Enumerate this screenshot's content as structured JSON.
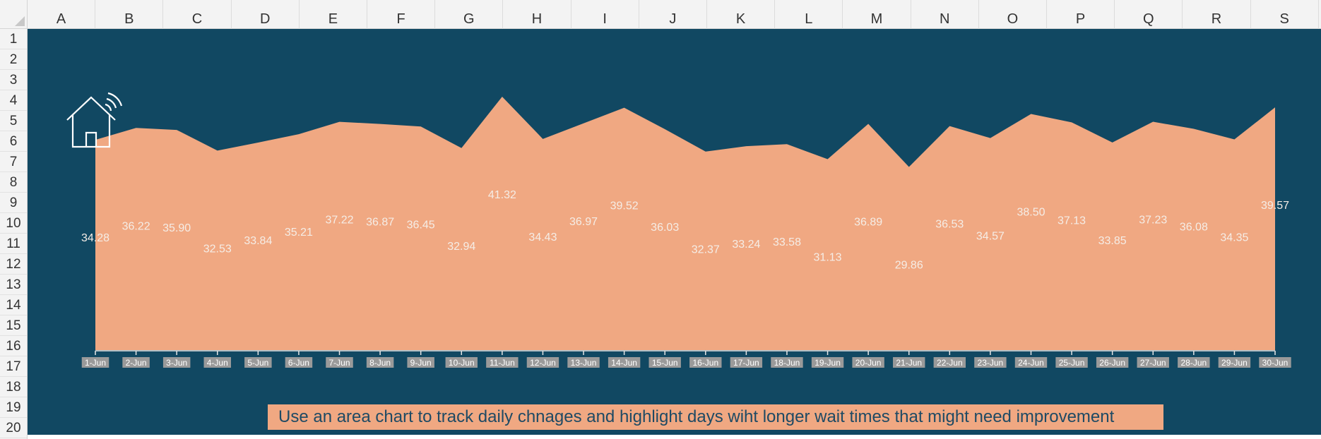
{
  "spreadsheet": {
    "columns": [
      "A",
      "B",
      "C",
      "D",
      "E",
      "F",
      "G",
      "H",
      "I",
      "J",
      "K",
      "L",
      "M",
      "N",
      "O",
      "P",
      "Q",
      "R",
      "S"
    ],
    "rows": [
      "1",
      "2",
      "3",
      "4",
      "5",
      "6",
      "7",
      "8",
      "9",
      "10",
      "11",
      "12",
      "13",
      "14",
      "15",
      "16",
      "17",
      "18",
      "19",
      "20"
    ]
  },
  "colors": {
    "background": "#114862",
    "area": "#f0a882",
    "label": "#f5ede6",
    "tick_label_bg": "#9a9a9a",
    "header_bg": "#f3f3f3"
  },
  "icon": {
    "name": "smart-home-icon"
  },
  "note": {
    "text": "Use an area chart to track daily chnages and highlight days wiht longer wait times that might need improvement"
  },
  "chart_data": {
    "type": "area",
    "categories": [
      "1-Jun",
      "2-Jun",
      "3-Jun",
      "4-Jun",
      "5-Jun",
      "6-Jun",
      "7-Jun",
      "8-Jun",
      "9-Jun",
      "10-Jun",
      "11-Jun",
      "12-Jun",
      "13-Jun",
      "14-Jun",
      "15-Jun",
      "16-Jun",
      "17-Jun",
      "18-Jun",
      "19-Jun",
      "20-Jun",
      "21-Jun",
      "22-Jun",
      "23-Jun",
      "24-Jun",
      "25-Jun",
      "26-Jun",
      "27-Jun",
      "28-Jun",
      "29-Jun",
      "30-Jun"
    ],
    "values": [
      34.28,
      36.22,
      35.9,
      32.53,
      33.84,
      35.21,
      37.22,
      36.87,
      36.45,
      32.94,
      41.32,
      34.43,
      36.97,
      39.52,
      36.03,
      32.37,
      33.24,
      33.58,
      31.13,
      36.89,
      29.86,
      36.53,
      34.57,
      38.5,
      37.13,
      33.85,
      37.23,
      36.08,
      34.35,
      39.57
    ],
    "data_labels": [
      "34.28",
      "36.22",
      "35.90",
      "32.53",
      "33.84",
      "35.21",
      "37.22",
      "36.87",
      "36.45",
      "32.94",
      "41.32",
      "34.43",
      "36.97",
      "39.52",
      "36.03",
      "32.37",
      "33.24",
      "33.58",
      "31.13",
      "36.89",
      "29.86",
      "36.53",
      "34.57",
      "38.50",
      "37.13",
      "33.85",
      "37.23",
      "36.08",
      "34.35",
      "39.57"
    ],
    "ylim": [
      0,
      45
    ],
    "title": "",
    "xlabel": "",
    "ylabel": "",
    "grid": false,
    "legend": "none"
  }
}
